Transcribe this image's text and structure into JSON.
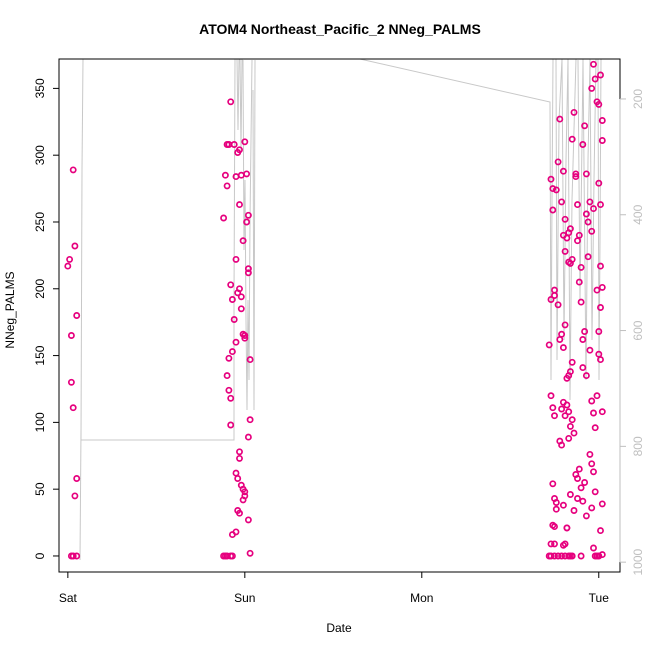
{
  "chart_data": {
    "type": "scatter",
    "title": "ATOM4 Northeast_Pacific_2 NNeg_PALMS",
    "xlabel": "Date",
    "ylabel": "NNeg_PALMS",
    "x_ticks": [
      "Sat",
      "Sun",
      "Mon",
      "Tue"
    ],
    "y_ticks": [
      0,
      50,
      100,
      150,
      200,
      250,
      300,
      350
    ],
    "y2_ticks": [
      200,
      400,
      600,
      800,
      1000
    ],
    "xlim_days": [
      -0.05,
      3.12
    ],
    "ylim": [
      -12,
      372
    ],
    "y2lim_reversed": [
      1017,
      131
    ],
    "grid": false,
    "point_color": "#e6007e",
    "line_color": "#c8c8c8",
    "series": [
      {
        "values": [
          [
            0.0,
            217
          ],
          [
            0.01,
            222
          ],
          [
            0.02,
            165
          ],
          [
            0.02,
            130
          ],
          [
            0.03,
            111
          ],
          [
            0.03,
            289
          ],
          [
            0.04,
            232
          ],
          [
            0.05,
            180
          ],
          [
            0.05,
            58
          ],
          [
            0.04,
            45
          ],
          [
            0.02,
            0
          ],
          [
            0.03,
            0
          ],
          [
            0.05,
            0
          ],
          [
            0.88,
            0
          ],
          [
            0.89,
            0
          ],
          [
            0.9,
            0
          ],
          [
            0.92,
            0
          ],
          [
            0.93,
            0
          ],
          [
            0.88,
            253
          ],
          [
            0.89,
            285
          ],
          [
            0.9,
            277
          ],
          [
            0.9,
            135
          ],
          [
            0.91,
            148
          ],
          [
            0.91,
            124
          ],
          [
            0.92,
            118
          ],
          [
            0.92,
            98
          ],
          [
            0.9,
            308
          ],
          [
            0.91,
            308
          ],
          [
            0.92,
            340
          ],
          [
            0.92,
            203
          ],
          [
            0.93,
            153
          ],
          [
            0.93,
            192
          ],
          [
            0.94,
            177
          ],
          [
            0.95,
            160
          ],
          [
            0.93,
            16
          ],
          [
            0.95,
            18
          ],
          [
            0.95,
            62
          ],
          [
            0.96,
            58
          ],
          [
            0.97,
            73
          ],
          [
            0.97,
            78
          ],
          [
            0.98,
            53
          ],
          [
            0.99,
            50
          ],
          [
            1.0,
            45
          ],
          [
            0.99,
            42
          ],
          [
            1.0,
            48
          ],
          [
            0.96,
            34
          ],
          [
            0.97,
            32
          ],
          [
            0.94,
            308
          ],
          [
            0.95,
            284
          ],
          [
            0.96,
            302
          ],
          [
            0.97,
            304
          ],
          [
            0.97,
            263
          ],
          [
            0.98,
            285
          ],
          [
            0.95,
            222
          ],
          [
            0.96,
            197
          ],
          [
            0.97,
            200
          ],
          [
            0.98,
            194
          ],
          [
            0.98,
            185
          ],
          [
            0.99,
            236
          ],
          [
            0.99,
            166
          ],
          [
            1.0,
            163
          ],
          [
            1.0,
            165
          ],
          [
            1.0,
            310
          ],
          [
            1.01,
            286
          ],
          [
            1.01,
            250
          ],
          [
            1.02,
            255
          ],
          [
            1.02,
            212
          ],
          [
            1.02,
            215
          ],
          [
            1.03,
            147
          ],
          [
            1.03,
            102
          ],
          [
            1.02,
            89
          ],
          [
            1.02,
            27
          ],
          [
            1.03,
            2
          ]
        ]
      },
      {
        "values": [
          [
            2.72,
            158
          ],
          [
            2.73,
            192
          ],
          [
            2.73,
            282
          ],
          [
            2.74,
            275
          ],
          [
            2.74,
            259
          ],
          [
            2.75,
            195
          ],
          [
            2.75,
            199
          ],
          [
            2.76,
            274
          ],
          [
            2.73,
            120
          ],
          [
            2.74,
            111
          ],
          [
            2.75,
            105
          ],
          [
            2.73,
            9
          ],
          [
            2.75,
            9
          ],
          [
            2.74,
            23
          ],
          [
            2.75,
            22
          ],
          [
            2.75,
            43
          ],
          [
            2.76,
            40
          ],
          [
            2.74,
            54
          ],
          [
            2.76,
            35
          ],
          [
            2.72,
            0
          ],
          [
            2.73,
            0
          ],
          [
            2.75,
            0
          ],
          [
            2.77,
            295
          ],
          [
            2.78,
            327
          ],
          [
            2.79,
            265
          ],
          [
            2.8,
            288
          ],
          [
            2.8,
            240
          ],
          [
            2.81,
            252
          ],
          [
            2.81,
            228
          ],
          [
            2.82,
            238
          ],
          [
            2.83,
            242
          ],
          [
            2.83,
            220
          ],
          [
            2.84,
            245
          ],
          [
            2.84,
            219
          ],
          [
            2.85,
            222
          ],
          [
            2.79,
            110
          ],
          [
            2.8,
            115
          ],
          [
            2.81,
            105
          ],
          [
            2.82,
            113
          ],
          [
            2.83,
            108
          ],
          [
            2.77,
            188
          ],
          [
            2.78,
            162
          ],
          [
            2.79,
            166
          ],
          [
            2.8,
            156
          ],
          [
            2.81,
            173
          ],
          [
            2.82,
            133
          ],
          [
            2.83,
            135
          ],
          [
            2.84,
            138
          ],
          [
            2.85,
            145
          ],
          [
            2.78,
            86
          ],
          [
            2.79,
            83
          ],
          [
            2.8,
            8
          ],
          [
            2.81,
            9
          ],
          [
            2.82,
            21
          ],
          [
            2.83,
            88
          ],
          [
            2.84,
            97
          ],
          [
            2.85,
            102
          ],
          [
            2.86,
            92
          ],
          [
            2.77,
            0
          ],
          [
            2.79,
            0
          ],
          [
            2.81,
            0
          ],
          [
            2.83,
            0
          ],
          [
            2.84,
            0
          ],
          [
            2.85,
            0
          ],
          [
            2.8,
            38
          ],
          [
            2.82,
            21
          ],
          [
            2.84,
            46
          ],
          [
            2.86,
            34
          ],
          [
            2.85,
            312
          ],
          [
            2.86,
            332
          ],
          [
            2.87,
            284
          ],
          [
            2.87,
            286
          ],
          [
            2.88,
            236
          ],
          [
            2.88,
            263
          ],
          [
            2.89,
            240
          ],
          [
            2.89,
            205
          ],
          [
            2.9,
            216
          ],
          [
            2.9,
            190
          ],
          [
            2.91,
            162
          ],
          [
            2.91,
            141
          ],
          [
            2.92,
            168
          ],
          [
            2.93,
            135
          ],
          [
            2.88,
            58
          ],
          [
            2.89,
            65
          ],
          [
            2.9,
            51
          ],
          [
            2.91,
            41
          ],
          [
            2.92,
            55
          ],
          [
            2.93,
            30
          ],
          [
            2.87,
            61
          ],
          [
            2.88,
            43
          ],
          [
            2.9,
            0
          ],
          [
            2.91,
            308
          ],
          [
            2.92,
            322
          ],
          [
            2.93,
            286
          ],
          [
            2.93,
            256
          ],
          [
            2.94,
            250
          ],
          [
            2.94,
            224
          ],
          [
            2.95,
            265
          ],
          [
            2.96,
            243
          ],
          [
            2.97,
            260
          ],
          [
            2.95,
            154
          ],
          [
            2.96,
            116
          ],
          [
            2.97,
            107
          ],
          [
            2.98,
            96
          ],
          [
            2.99,
            120
          ],
          [
            2.95,
            76
          ],
          [
            2.96,
            69
          ],
          [
            2.97,
            63
          ],
          [
            2.98,
            48
          ],
          [
            2.96,
            36
          ],
          [
            2.97,
            6
          ],
          [
            2.98,
            0
          ],
          [
            2.99,
            0
          ],
          [
            2.96,
            350
          ],
          [
            2.97,
            368
          ],
          [
            2.98,
            357
          ],
          [
            2.99,
            340
          ],
          [
            3.0,
            338
          ],
          [
            3.01,
            360
          ],
          [
            3.02,
            326
          ],
          [
            3.02,
            311
          ],
          [
            3.0,
            279
          ],
          [
            3.01,
            263
          ],
          [
            3.02,
            201
          ],
          [
            3.01,
            217
          ],
          [
            2.99,
            199
          ],
          [
            3.0,
            168
          ],
          [
            3.0,
            151
          ],
          [
            3.01,
            147
          ],
          [
            3.01,
            186
          ],
          [
            3.02,
            108
          ],
          [
            3.02,
            39
          ],
          [
            3.01,
            19
          ],
          [
            3.0,
            0
          ],
          [
            3.02,
            1
          ]
        ]
      }
    ]
  }
}
